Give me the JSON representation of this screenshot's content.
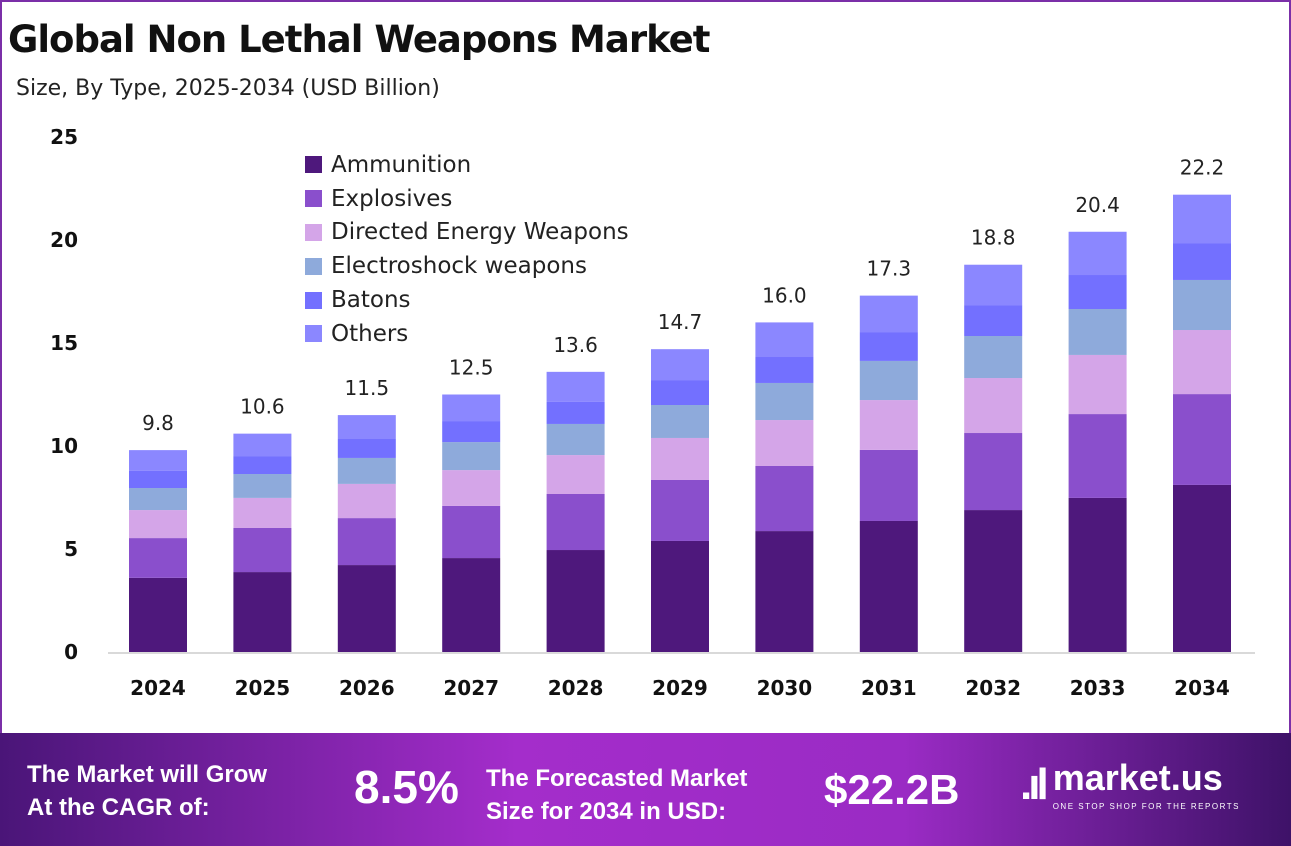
{
  "chart_data": {
    "type": "bar",
    "stacked": true,
    "title": "Global Non Lethal Weapons Market",
    "subtitle": "Size, By Type, 2025-2034 (USD Billion)",
    "xlabel": "",
    "ylabel": "",
    "ylim": [
      0,
      25
    ],
    "yticks": [
      0,
      5,
      10,
      15,
      20,
      25
    ],
    "grid": false,
    "legend_position": "top-left",
    "categories": [
      "2024",
      "2025",
      "2026",
      "2027",
      "2028",
      "2029",
      "2030",
      "2031",
      "2032",
      "2033",
      "2034"
    ],
    "totals": [
      "9.8",
      "10.6",
      "11.5",
      "12.5",
      "13.6",
      "14.7",
      "16.0",
      "17.3",
      "18.8",
      "20.4",
      "22.2"
    ],
    "series": [
      {
        "name": "Ammunition",
        "color": "#4E187C",
        "values": [
          3.6,
          3.88,
          4.22,
          4.56,
          4.95,
          5.39,
          5.87,
          6.36,
          6.89,
          7.48,
          8.11
        ]
      },
      {
        "name": "Explosives",
        "color": "#8A4FCC",
        "values": [
          1.93,
          2.14,
          2.28,
          2.53,
          2.72,
          2.96,
          3.16,
          3.45,
          3.74,
          4.07,
          4.41
        ]
      },
      {
        "name": "Directed Energy Weapons",
        "color": "#D4A5E8",
        "values": [
          1.36,
          1.46,
          1.66,
          1.74,
          1.89,
          2.04,
          2.23,
          2.42,
          2.67,
          2.87,
          3.11
        ]
      },
      {
        "name": "Electroshock weapons",
        "color": "#8EAADB",
        "values": [
          1.07,
          1.16,
          1.26,
          1.36,
          1.51,
          1.6,
          1.8,
          1.9,
          2.04,
          2.23,
          2.43
        ]
      },
      {
        "name": "Batons",
        "color": "#7370FF",
        "values": [
          0.83,
          0.87,
          0.92,
          1.02,
          1.07,
          1.21,
          1.26,
          1.4,
          1.5,
          1.65,
          1.79
        ]
      },
      {
        "name": "Others",
        "color": "#8B87FF",
        "values": [
          1.01,
          1.09,
          1.16,
          1.29,
          1.46,
          1.5,
          1.68,
          1.77,
          1.96,
          2.1,
          2.35
        ]
      }
    ]
  },
  "footer": {
    "cagr_label_line1": "The Market will Grow",
    "cagr_label_line2": "At the CAGR of:",
    "cagr_value": "8.5%",
    "size_label_line1": "The Forecasted Market",
    "size_label_line2": "Size for 2034 in USD:",
    "size_value": "$22.2B",
    "logo_name": "market.us",
    "logo_tagline": "ONE STOP SHOP FOR THE REPORTS"
  }
}
